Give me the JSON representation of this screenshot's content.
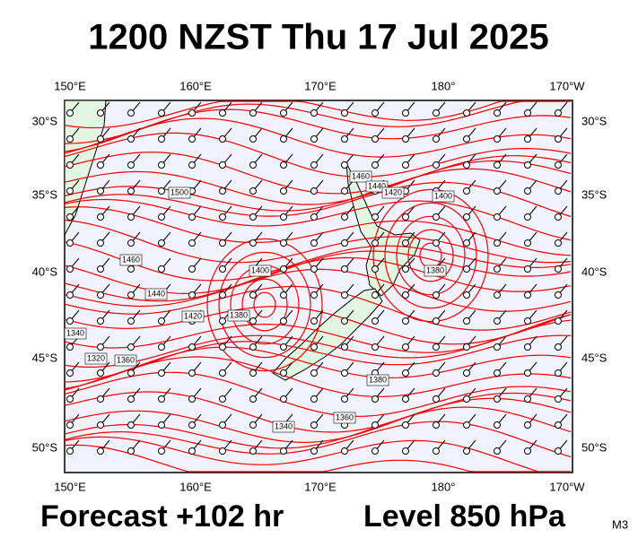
{
  "header": {
    "title": "1200 NZST Thu 17 Jul 2025"
  },
  "map": {
    "lon_labels_top": [
      "150°E",
      "160°E",
      "170°E",
      "180°",
      "170°W"
    ],
    "lon_labels_bottom": [
      "150°E",
      "160°E",
      "170°E",
      "180°",
      "170°W"
    ],
    "lat_labels_left": [
      "30°S",
      "35°S",
      "40°S",
      "45°S",
      "50°S"
    ],
    "lat_labels_right": [
      "30°S",
      "35°S",
      "40°S",
      "45°S",
      "50°S"
    ],
    "contour_labels": [
      1500,
      1460,
      1440,
      1420,
      1400,
      1400,
      1380,
      1380,
      1340,
      1320,
      1360,
      1380,
      1360,
      1340,
      1460,
      1440,
      1420
    ]
  },
  "footer": {
    "forecast": "Forecast +102 hr",
    "level": "Level 850 hPa",
    "model": "M3"
  }
}
